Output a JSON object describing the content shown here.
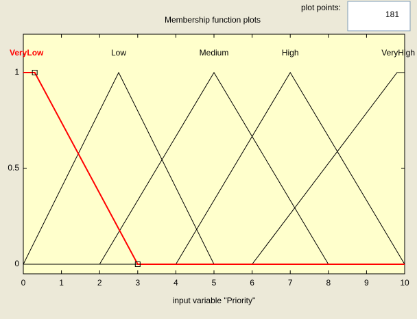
{
  "plot_points": {
    "label": "plot points:",
    "value": "181"
  },
  "chart_data": {
    "type": "line",
    "title": "Membership function plots",
    "xlabel": "input variable \"Priority\"",
    "xlim": [
      0,
      10
    ],
    "ylim": [
      -0.05,
      1.2
    ],
    "xticks": [
      0,
      1,
      2,
      3,
      4,
      5,
      6,
      7,
      8,
      9,
      10
    ],
    "yticks": [
      0,
      0.5,
      1
    ],
    "series": [
      {
        "name": "VeryLow",
        "color": "#ff0000",
        "markers": "square",
        "x": [
          0,
          0.3,
          3,
          10
        ],
        "values": [
          1,
          1,
          0,
          0
        ]
      },
      {
        "name": "Low",
        "color": "#000000",
        "x": [
          0,
          2.5,
          5,
          10
        ],
        "values": [
          0,
          1,
          0,
          0
        ]
      },
      {
        "name": "Medium",
        "color": "#000000",
        "x": [
          0,
          2,
          5,
          8,
          10
        ],
        "values": [
          0,
          0,
          1,
          0,
          0
        ]
      },
      {
        "name": "High",
        "color": "#000000",
        "x": [
          0,
          4,
          7,
          10
        ],
        "values": [
          0,
          0,
          1,
          0
        ]
      },
      {
        "name": "VeryHigh",
        "color": "#000000",
        "x": [
          0,
          6,
          9.8,
          10
        ],
        "values": [
          0,
          0,
          1,
          1
        ]
      }
    ]
  }
}
